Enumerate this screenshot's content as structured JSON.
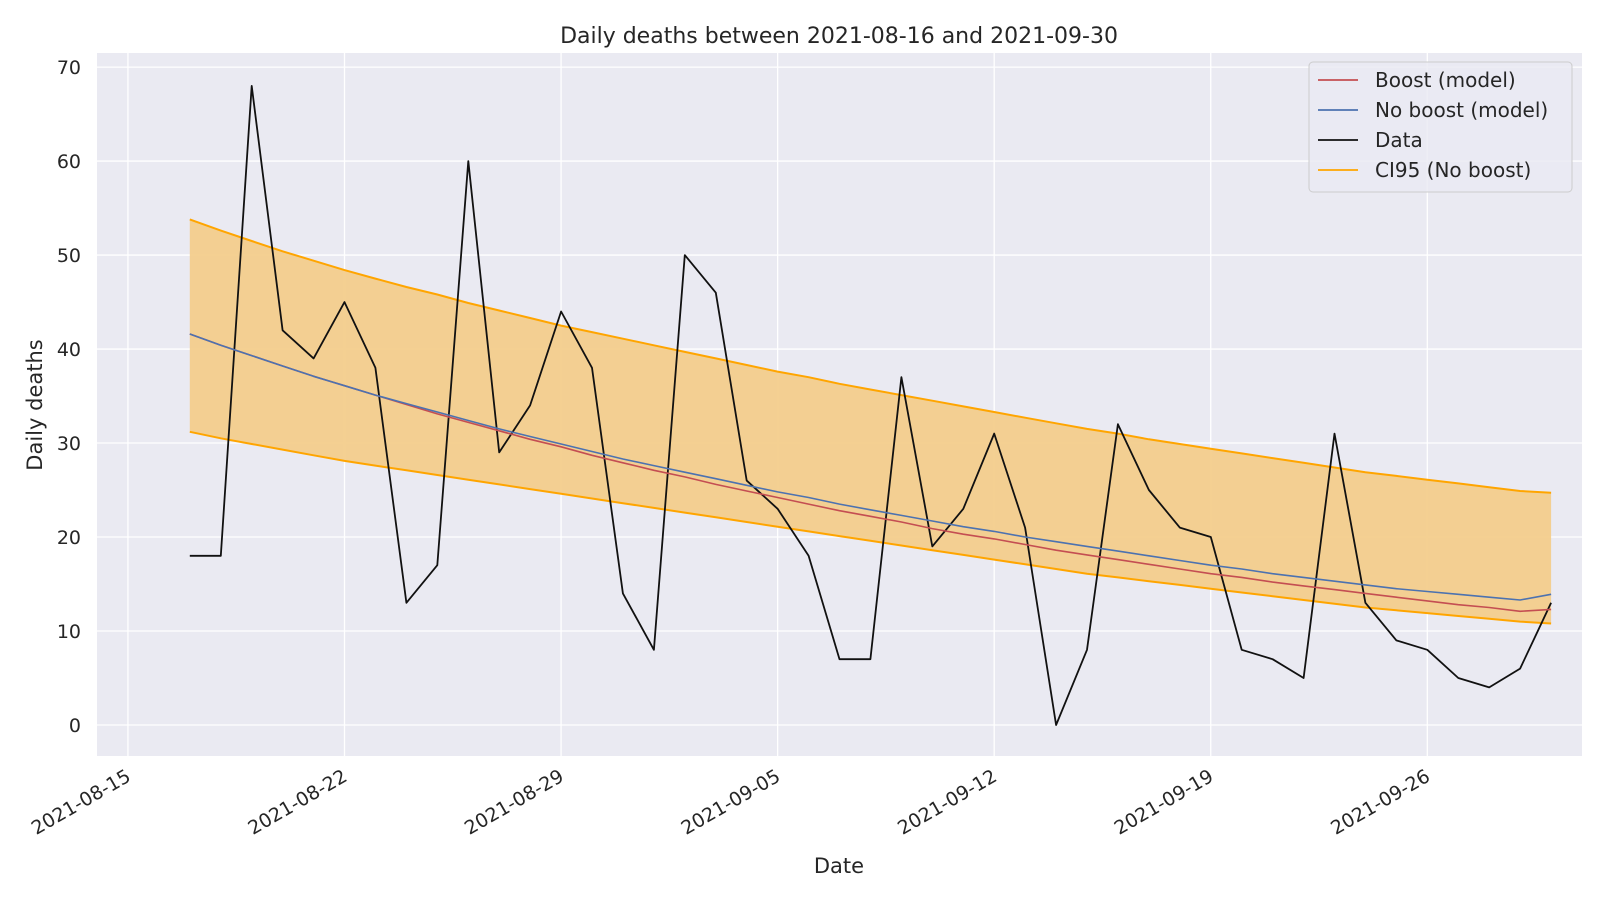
{
  "chart_data": {
    "type": "line",
    "title": "Daily deaths between 2021-08-16 and 2021-09-30",
    "xlabel": "Date",
    "ylabel": "Daily deaths",
    "xlim": [
      "2021-08-14",
      "2021-10-01"
    ],
    "ylim": [
      -3.3,
      71.5
    ],
    "grid": true,
    "legend_position": "top-right",
    "x_ticks": [
      "2021-08-15",
      "2021-08-22",
      "2021-08-29",
      "2021-09-05",
      "2021-09-12",
      "2021-09-19",
      "2021-09-26"
    ],
    "y_ticks": [
      0,
      10,
      20,
      30,
      40,
      50,
      60,
      70
    ],
    "x": [
      "2021-08-17",
      "2021-08-18",
      "2021-08-19",
      "2021-08-20",
      "2021-08-21",
      "2021-08-22",
      "2021-08-23",
      "2021-08-24",
      "2021-08-25",
      "2021-08-26",
      "2021-08-27",
      "2021-08-28",
      "2021-08-29",
      "2021-08-30",
      "2021-08-31",
      "2021-09-01",
      "2021-09-02",
      "2021-09-03",
      "2021-09-04",
      "2021-09-05",
      "2021-09-06",
      "2021-09-07",
      "2021-09-08",
      "2021-09-09",
      "2021-09-10",
      "2021-09-11",
      "2021-09-12",
      "2021-09-13",
      "2021-09-14",
      "2021-09-15",
      "2021-09-16",
      "2021-09-17",
      "2021-09-18",
      "2021-09-19",
      "2021-09-20",
      "2021-09-21",
      "2021-09-22",
      "2021-09-23",
      "2021-09-24",
      "2021-09-25",
      "2021-09-26",
      "2021-09-27",
      "2021-09-28",
      "2021-09-29",
      "2021-09-30"
    ],
    "series": [
      {
        "name": "Boost (model)",
        "color": "#c44e52",
        "values": [
          41.6,
          40.4,
          39.3,
          38.2,
          37.1,
          36.1,
          35.1,
          34.1,
          33.1,
          32.2,
          31.3,
          30.4,
          29.6,
          28.7,
          27.9,
          27.1,
          26.4,
          25.6,
          24.9,
          24.2,
          23.5,
          22.8,
          22.2,
          21.6,
          20.9,
          20.3,
          19.8,
          19.2,
          18.6,
          18.1,
          17.6,
          17.1,
          16.6,
          16.1,
          15.7,
          15.2,
          14.8,
          14.4,
          14.0,
          13.6,
          13.2,
          12.8,
          12.5,
          12.1,
          12.3
        ]
      },
      {
        "name": "No boost (model)",
        "color": "#4c72b0",
        "values": [
          41.6,
          40.4,
          39.3,
          38.2,
          37.1,
          36.1,
          35.1,
          34.2,
          33.3,
          32.4,
          31.5,
          30.7,
          29.9,
          29.1,
          28.3,
          27.6,
          26.9,
          26.2,
          25.5,
          24.8,
          24.2,
          23.5,
          22.9,
          22.3,
          21.7,
          21.1,
          20.6,
          20.0,
          19.5,
          19.0,
          18.5,
          18.0,
          17.5,
          17.0,
          16.6,
          16.1,
          15.7,
          15.3,
          14.9,
          14.5,
          14.2,
          13.9,
          13.6,
          13.3,
          13.9
        ]
      },
      {
        "name": "Data",
        "color": "#111111",
        "values": [
          18,
          18,
          68,
          42,
          39,
          45,
          38,
          13,
          17,
          60,
          29,
          34,
          44,
          38,
          14,
          8,
          50,
          46,
          26,
          23,
          18,
          7,
          7,
          37,
          19,
          23,
          31,
          21,
          0,
          8,
          32,
          25,
          21,
          20,
          8,
          7,
          5,
          31,
          13,
          9,
          8,
          5,
          4,
          6,
          13
        ]
      }
    ],
    "band": {
      "name": "CI95 (No boost)",
      "color": "#ffa500",
      "fill": "#f3cd8c",
      "upper": [
        53.8,
        52.6,
        51.5,
        50.4,
        49.4,
        48.4,
        47.5,
        46.6,
        45.8,
        44.9,
        44.1,
        43.3,
        42.5,
        41.8,
        41.1,
        40.4,
        39.7,
        39.0,
        38.3,
        37.6,
        37.0,
        36.3,
        35.7,
        35.1,
        34.5,
        33.9,
        33.3,
        32.7,
        32.1,
        31.5,
        31.0,
        30.4,
        29.9,
        29.4,
        28.9,
        28.4,
        27.9,
        27.4,
        26.9,
        26.5,
        26.1,
        25.7,
        25.3,
        24.9,
        24.7
      ],
      "lower": [
        31.2,
        30.5,
        29.9,
        29.3,
        28.7,
        28.1,
        27.6,
        27.1,
        26.6,
        26.1,
        25.6,
        25.1,
        24.6,
        24.1,
        23.6,
        23.1,
        22.6,
        22.1,
        21.6,
        21.1,
        20.6,
        20.1,
        19.6,
        19.1,
        18.6,
        18.1,
        17.6,
        17.1,
        16.6,
        16.1,
        15.7,
        15.3,
        14.9,
        14.5,
        14.1,
        13.7,
        13.3,
        12.9,
        12.5,
        12.2,
        11.9,
        11.6,
        11.3,
        11.0,
        10.8
      ]
    },
    "legend": [
      "Boost (model)",
      "No boost (model)",
      "Data",
      "CI95 (No boost)"
    ]
  }
}
